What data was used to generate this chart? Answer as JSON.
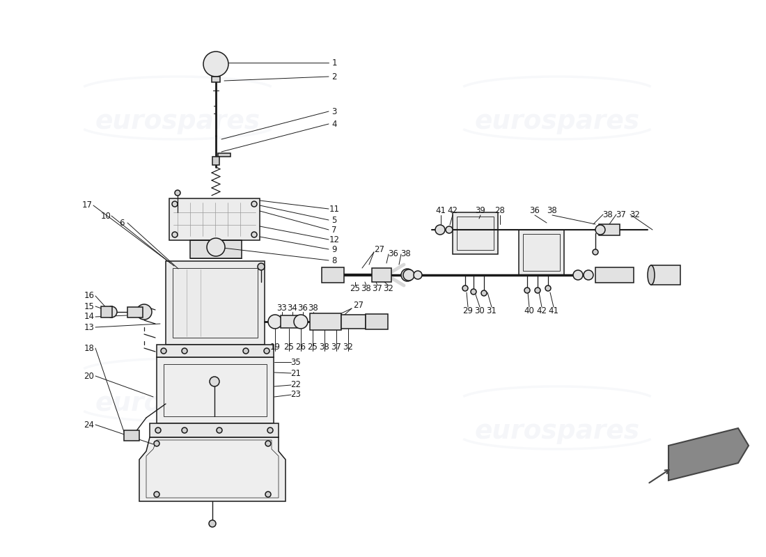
{
  "background_color": "#ffffff",
  "line_color": "#1a1a1a",
  "watermark_text": "eurospares",
  "watermark_color": "#c5cfe0",
  "figsize": [
    11.0,
    8.0
  ],
  "dpi": 100,
  "lw": 1.1
}
